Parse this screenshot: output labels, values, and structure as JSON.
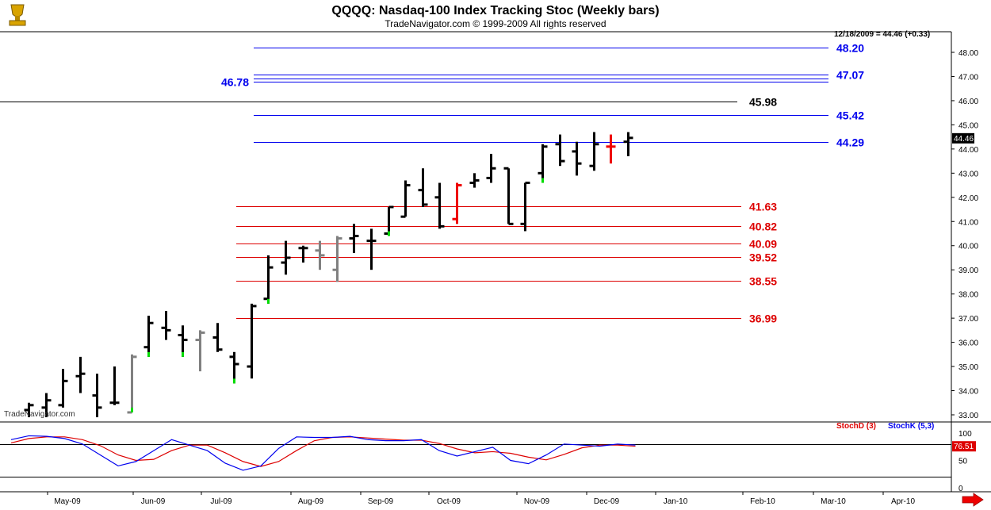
{
  "header": {
    "title": "QQQQ:  Nasdaq-100 Index Tracking Stoc  (Weekly bars)",
    "subtitle": "TradeNavigator.com © 1999-2009 All rights reserved",
    "last_quote": "12/18/2009 = 44.46 (+0.33)",
    "watermark": "TradeNavigator.com",
    "logo_icon": "trophy-icon",
    "scroll_icon": "red-arrow-right-icon"
  },
  "colors": {
    "up_bar": "#000000",
    "neutral_bar": "#808080",
    "green_close": "#00dd00",
    "red_close": "#ee0000",
    "resistance": "#0000ee",
    "support": "#dd0000",
    "pivot": "#000000",
    "stoch_d": "#dd0000",
    "stoch_k": "#0000ee"
  },
  "chart_data": {
    "type": "ohlc",
    "series_name": "",
    "x_labels": [
      "May-09",
      "Jun-09",
      "Jul-09",
      "Aug-09",
      "Sep-09",
      "Oct-09",
      "Nov-09",
      "Dec-09",
      "Jan-10",
      "Feb-10",
      "Mar-10",
      "Apr-10"
    ],
    "ylim": [
      32.8,
      48.6
    ],
    "yticks": [
      "33.00",
      "34.00",
      "35.00",
      "36.00",
      "37.00",
      "38.00",
      "39.00",
      "40.00",
      "41.00",
      "42.00",
      "43.00",
      "44.00",
      "45.00",
      "46.00",
      "47.00",
      "48.00"
    ],
    "last_price": "44.46",
    "bars": [
      {
        "o": 33.2,
        "h": 33.5,
        "l": 32.9,
        "c": 33.4,
        "color": "black"
      },
      {
        "o": 33.3,
        "h": 33.9,
        "l": 32.9,
        "c": 33.6,
        "color": "black"
      },
      {
        "o": 33.4,
        "h": 34.9,
        "l": 33.3,
        "c": 34.4,
        "color": "black"
      },
      {
        "o": 34.6,
        "h": 35.4,
        "l": 33.9,
        "c": 34.7,
        "color": "black"
      },
      {
        "o": 33.8,
        "h": 34.7,
        "l": 32.9,
        "c": 33.3,
        "color": "black"
      },
      {
        "o": 33.5,
        "h": 35.0,
        "l": 33.4,
        "c": 33.5,
        "color": "black"
      },
      {
        "o": 33.1,
        "h": 35.5,
        "l": 33.1,
        "c": 35.4,
        "color": "gray",
        "close_mark": "green"
      },
      {
        "o": 35.8,
        "h": 37.1,
        "l": 35.4,
        "c": 36.8,
        "color": "black",
        "close_mark": "green"
      },
      {
        "o": 36.6,
        "h": 37.3,
        "l": 36.1,
        "c": 36.5,
        "color": "black"
      },
      {
        "o": 36.3,
        "h": 36.7,
        "l": 35.4,
        "c": 36.1,
        "color": "black",
        "close_mark": "green"
      },
      {
        "o": 36.1,
        "h": 36.5,
        "l": 34.8,
        "c": 36.4,
        "color": "gray"
      },
      {
        "o": 36.2,
        "h": 36.8,
        "l": 35.6,
        "c": 35.7,
        "color": "black"
      },
      {
        "o": 35.4,
        "h": 35.6,
        "l": 34.3,
        "c": 35.1,
        "color": "black",
        "close_mark": "green"
      },
      {
        "o": 35.0,
        "h": 37.6,
        "l": 34.5,
        "c": 37.5,
        "color": "black"
      },
      {
        "o": 37.8,
        "h": 39.6,
        "l": 37.6,
        "c": 39.1,
        "color": "black",
        "close_mark": "green"
      },
      {
        "o": 39.3,
        "h": 40.2,
        "l": 38.8,
        "c": 39.5,
        "color": "black"
      },
      {
        "o": 39.9,
        "h": 40.0,
        "l": 39.3,
        "c": 39.9,
        "color": "black"
      },
      {
        "o": 39.8,
        "h": 40.2,
        "l": 39.0,
        "c": 39.6,
        "color": "gray"
      },
      {
        "o": 39.0,
        "h": 40.4,
        "l": 38.5,
        "c": 40.3,
        "color": "gray"
      },
      {
        "o": 40.3,
        "h": 40.9,
        "l": 39.7,
        "c": 40.4,
        "color": "black"
      },
      {
        "o": 40.2,
        "h": 40.7,
        "l": 39.0,
        "c": 40.2,
        "color": "black"
      },
      {
        "o": 40.5,
        "h": 41.6,
        "l": 40.4,
        "c": 41.6,
        "color": "black",
        "close_mark": "green"
      },
      {
        "o": 41.2,
        "h": 42.7,
        "l": 41.2,
        "c": 42.5,
        "color": "black"
      },
      {
        "o": 42.3,
        "h": 43.2,
        "l": 41.6,
        "c": 41.7,
        "color": "black"
      },
      {
        "o": 42.0,
        "h": 42.6,
        "l": 40.7,
        "c": 40.8,
        "color": "black"
      },
      {
        "o": 41.1,
        "h": 42.6,
        "l": 40.9,
        "c": 42.5,
        "color": "red"
      },
      {
        "o": 42.6,
        "h": 43.0,
        "l": 42.4,
        "c": 42.7,
        "color": "black"
      },
      {
        "o": 42.8,
        "h": 43.8,
        "l": 42.6,
        "c": 43.2,
        "color": "black"
      },
      {
        "o": 43.2,
        "h": 43.2,
        "l": 40.9,
        "c": 40.9,
        "color": "black"
      },
      {
        "o": 40.9,
        "h": 42.6,
        "l": 40.6,
        "c": 42.6,
        "color": "black"
      },
      {
        "o": 43.0,
        "h": 44.2,
        "l": 42.6,
        "c": 44.1,
        "color": "black",
        "close_mark": "green"
      },
      {
        "o": 44.2,
        "h": 44.6,
        "l": 43.3,
        "c": 43.5,
        "color": "black"
      },
      {
        "o": 43.9,
        "h": 44.3,
        "l": 42.9,
        "c": 43.4,
        "color": "black"
      },
      {
        "o": 43.3,
        "h": 44.7,
        "l": 43.1,
        "c": 44.2,
        "color": "black"
      },
      {
        "o": 44.1,
        "h": 44.6,
        "l": 43.4,
        "c": 44.1,
        "color": "red"
      },
      {
        "o": 44.3,
        "h": 44.7,
        "l": 43.7,
        "c": 44.46,
        "color": "black"
      }
    ],
    "levels": [
      {
        "value": 48.2,
        "label": "48.20",
        "kind": "resistance"
      },
      {
        "value": 47.07,
        "label": "47.07",
        "kind": "resistance"
      },
      {
        "value": 46.92,
        "label": "",
        "kind": "resistance"
      },
      {
        "value": 46.78,
        "label": "46.78",
        "kind": "resistance_left"
      },
      {
        "value": 45.98,
        "label": "45.98",
        "kind": "pivot"
      },
      {
        "value": 45.42,
        "label": "45.42",
        "kind": "resistance"
      },
      {
        "value": 44.29,
        "label": "44.29",
        "kind": "resistance"
      },
      {
        "value": 41.63,
        "label": "41.63",
        "kind": "support"
      },
      {
        "value": 40.82,
        "label": "40.82",
        "kind": "support"
      },
      {
        "value": 40.09,
        "label": "40.09",
        "kind": "support"
      },
      {
        "value": 39.52,
        "label": "39.52",
        "kind": "support"
      },
      {
        "value": 38.55,
        "label": "38.55",
        "kind": "support"
      },
      {
        "value": 36.99,
        "label": "36.99",
        "kind": "support"
      }
    ],
    "stochastic": {
      "d_label": "StochD (3)",
      "k_label": "StochK (5,3)",
      "yticks": [
        "100",
        "75",
        "50",
        "0"
      ],
      "last_value": "76.51",
      "reference_levels": [
        80,
        20
      ],
      "k": [
        88,
        95,
        94,
        90,
        80,
        60,
        40,
        48,
        68,
        88,
        78,
        68,
        45,
        32,
        40,
        72,
        93,
        92,
        92,
        94,
        88,
        86,
        86,
        88,
        68,
        58,
        66,
        74,
        50,
        44,
        60,
        80,
        78,
        76,
        80,
        78
      ],
      "d": [
        82,
        90,
        93,
        93,
        88,
        77,
        60,
        50,
        52,
        68,
        78,
        78,
        64,
        48,
        39,
        48,
        68,
        86,
        92,
        93,
        91,
        89,
        87,
        87,
        81,
        71,
        64,
        66,
        63,
        56,
        51,
        61,
        73,
        78,
        78,
        76
      ]
    }
  }
}
